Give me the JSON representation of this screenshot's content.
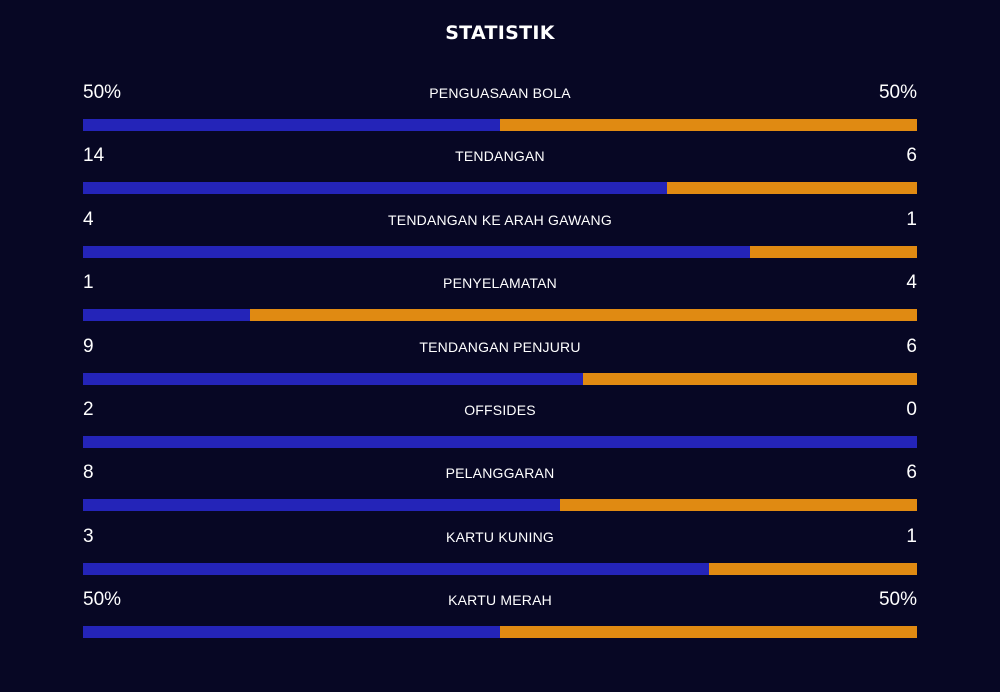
{
  "title": "STATISTIK",
  "colors": {
    "background": "#070724",
    "home": "#2424b8",
    "away": "#e08a12",
    "text": "#ffffff"
  },
  "stats": [
    {
      "label": "PENGUASAAN BOLA",
      "home": "50%",
      "away": "50%",
      "home_share": 0.5
    },
    {
      "label": "TENDANGAN",
      "home": "14",
      "away": "6",
      "home_share": 0.7
    },
    {
      "label": "TENDANGAN KE ARAH GAWANG",
      "home": "4",
      "away": "1",
      "home_share": 0.8
    },
    {
      "label": "PENYELAMATAN",
      "home": "1",
      "away": "4",
      "home_share": 0.2
    },
    {
      "label": "TENDANGAN PENJURU",
      "home": "9",
      "away": "6",
      "home_share": 0.6
    },
    {
      "label": "OFFSIDES",
      "home": "2",
      "away": "0",
      "home_share": 1.0
    },
    {
      "label": "PELANGGARAN",
      "home": "8",
      "away": "6",
      "home_share": 0.5714
    },
    {
      "label": "KARTU KUNING",
      "home": "3",
      "away": "1",
      "home_share": 0.75
    },
    {
      "label": "KARTU MERAH",
      "home": "50%",
      "away": "50%",
      "home_share": 0.5
    }
  ]
}
